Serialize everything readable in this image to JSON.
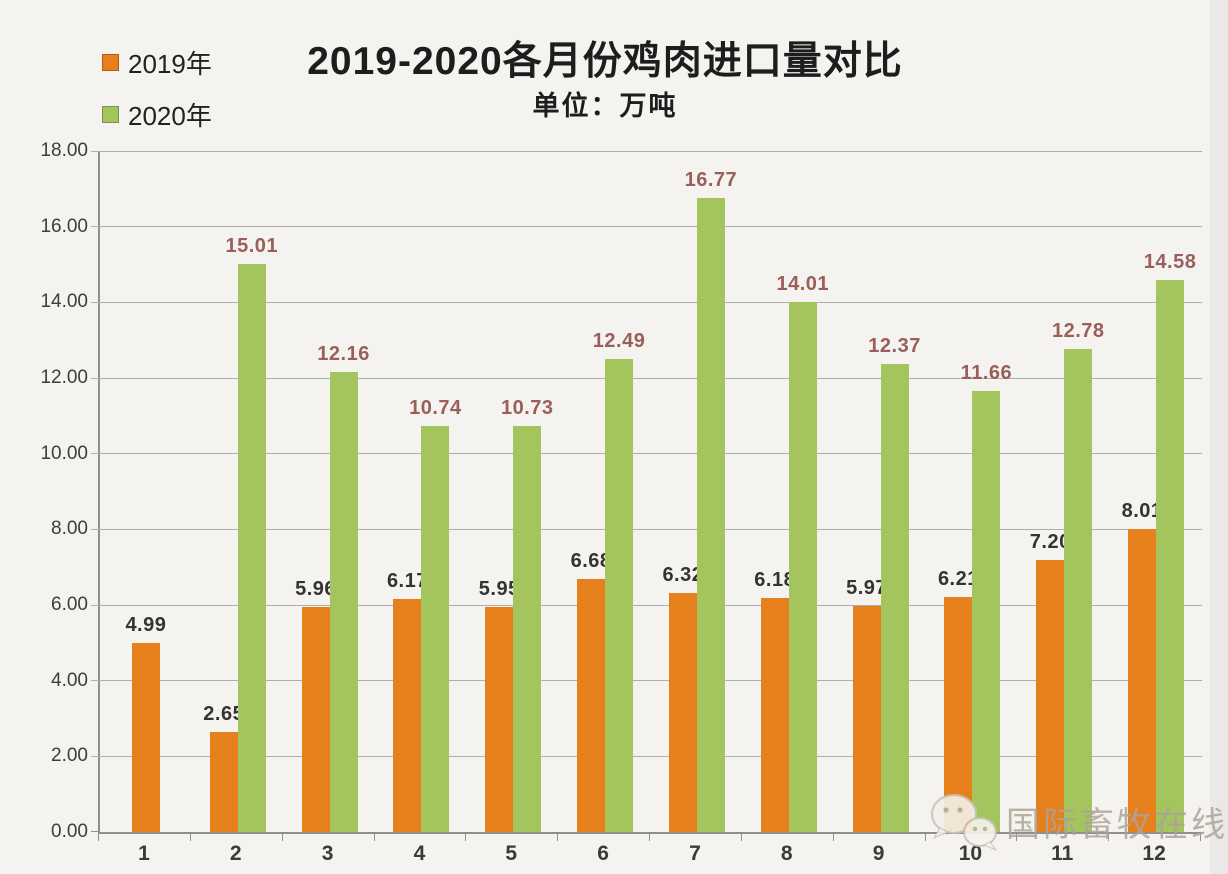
{
  "chart_data": {
    "type": "bar",
    "title": "2019-2020各月份鸡肉进口量对比",
    "subtitle": "单位：万吨",
    "categories": [
      "1",
      "2",
      "3",
      "4",
      "5",
      "6",
      "7",
      "8",
      "9",
      "10",
      "11",
      "12"
    ],
    "series": [
      {
        "name": "2019年",
        "color": "#E6801C",
        "label_color": "#333333",
        "values": [
          4.99,
          2.65,
          5.96,
          6.17,
          5.95,
          6.68,
          6.32,
          6.18,
          5.97,
          6.21,
          7.2,
          8.01
        ]
      },
      {
        "name": "2020年",
        "color": "#A4C45E",
        "label_color": "#9A5F5A",
        "values": [
          null,
          15.01,
          12.16,
          10.74,
          10.73,
          12.49,
          16.77,
          14.01,
          12.37,
          11.66,
          12.78,
          14.58
        ]
      }
    ],
    "y_ticks": [
      "0.00",
      "2.00",
      "4.00",
      "6.00",
      "8.00",
      "10.00",
      "12.00",
      "14.00",
      "16.00",
      "18.00"
    ],
    "ylim": [
      0,
      18
    ],
    "grid": "horizontal",
    "legend_position": "top-left",
    "value_labels": "above-bars",
    "axis_color": "#8f8f8f",
    "gridline_color": "#aeaeae",
    "background_color": "#f4f3f0"
  },
  "watermark": {
    "text": "国际畜牧在线",
    "icon": "wechat-icon"
  }
}
